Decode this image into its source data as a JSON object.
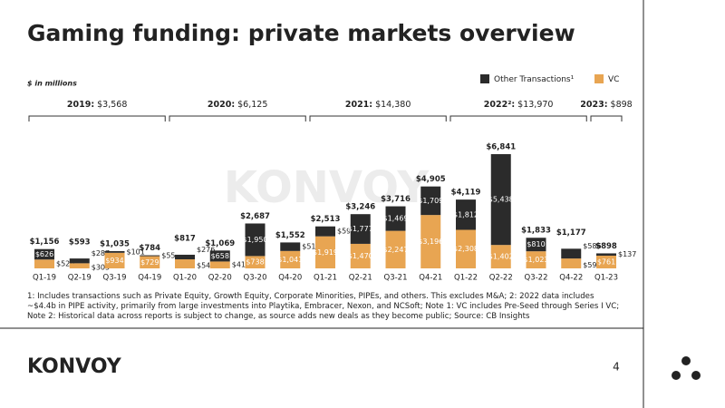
{
  "chart_data": {
    "type": "stacked_bar",
    "title": "Gaming funding: private markets overview",
    "unit_note": "$ in millions",
    "watermark": "KONVOY",
    "categories": [
      "Q1-19",
      "Q2-19",
      "Q3-19",
      "Q4-19",
      "Q1-20",
      "Q2-20",
      "Q3-20",
      "Q4-20",
      "Q1-21",
      "Q2-21",
      "Q3-21",
      "Q4-21",
      "Q1-22",
      "Q2-22",
      "Q3-22",
      "Q4-22",
      "Q1-23"
    ],
    "series": [
      {
        "name": "VC",
        "color": "#e8a552",
        "values": [
          529,
          305,
          934,
          729,
          541,
          411,
          738,
          1041,
          1919,
          1470,
          2247,
          3196,
          2308,
          1402,
          1023,
          591,
          761
        ],
        "value_labels": [
          "$529",
          "$305",
          "$934",
          "$729",
          "$541",
          "$411",
          "$738",
          "$1,041",
          "$1,919",
          "$1,470",
          "$2,247",
          "$3,196",
          "$2,308",
          "$1,402",
          "$1,023",
          "$591",
          "$761"
        ]
      },
      {
        "name": "Other Transactions¹",
        "color": "#2b2b2b",
        "values": [
          626,
          287,
          101,
          55,
          276,
          658,
          1950,
          511,
          594,
          1777,
          1469,
          1709,
          1812,
          5438,
          810,
          586,
          137
        ],
        "value_labels": [
          "$626",
          "$287",
          "$101",
          "$55",
          "$276",
          "$658",
          "$1,950",
          "$511",
          "$594",
          "$1,777",
          "$1,469",
          "$1,709",
          "$1,812",
          "$5,438",
          "$810",
          "$586",
          "$137"
        ]
      }
    ],
    "totals": {
      "values": [
        1156,
        593,
        1035,
        784,
        817,
        1069,
        2687,
        1552,
        2513,
        3246,
        3716,
        4905,
        4119,
        6841,
        1833,
        1177,
        898
      ],
      "value_labels": [
        "$1,156",
        "$593",
        "$1,035",
        "$784",
        "$817",
        "$1,069",
        "$2,687",
        "$1,552",
        "$2,513",
        "$3,246",
        "$3,716",
        "$4,905",
        "$4,119",
        "$6,841",
        "$1,833",
        "$1,177",
        "$898"
      ]
    },
    "year_groups": [
      {
        "year": "2019:",
        "total": "$3,568"
      },
      {
        "year": "2020:",
        "total": "$6,125"
      },
      {
        "year": "2021:",
        "total": "$14,380"
      },
      {
        "year": "2022²:",
        "total": "$13,970"
      },
      {
        "year": "2023:",
        "total": "$898"
      }
    ],
    "footnote": "1: Includes transactions such as Private Equity, Growth Equity, Corporate Minorities, PIPEs, and others. This excludes M&A; 2: 2022 data includes ~$4.4b in PIPE activity, primarily from large investments into Playtika, Embracer, Nexon, and NCSoft; Note 1: VC includes Pre-Seed through Series I VC; Note 2: Historical data across reports is subject to change, as source adds new deals as they become public; Source: CB Insights",
    "legend": "top-right"
  },
  "footer": {
    "logo": "KONVOY",
    "page": "4"
  }
}
